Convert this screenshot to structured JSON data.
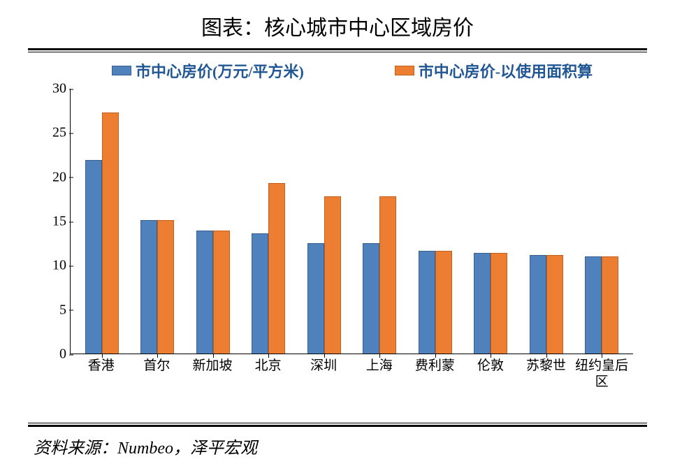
{
  "title": "图表：核心城市中心区域房价",
  "source": "资料来源：Numbeo，泽平宏观",
  "chart": {
    "type": "bar",
    "background_color": "#ffffff",
    "series": [
      {
        "name": "市中心房价(万元/平方米)",
        "color": "#4f81bd",
        "border_color": "#3a6090"
      },
      {
        "name": "市中心房价-以使用面积算",
        "color": "#ed7d31",
        "border_color": "#c05f1e"
      }
    ],
    "categories": [
      "香港",
      "首尔",
      "新加坡",
      "北京",
      "深圳",
      "上海",
      "费利蒙",
      "伦敦",
      "苏黎世",
      "纽约皇后区"
    ],
    "data": [
      {
        "s1": 21.9,
        "s2": 27.3
      },
      {
        "s1": 15.1,
        "s2": 15.1
      },
      {
        "s1": 13.9,
        "s2": 13.9
      },
      {
        "s1": 13.6,
        "s2": 19.3
      },
      {
        "s1": 12.5,
        "s2": 17.8
      },
      {
        "s1": 12.5,
        "s2": 17.8
      },
      {
        "s1": 11.6,
        "s2": 11.6
      },
      {
        "s1": 11.4,
        "s2": 11.4
      },
      {
        "s1": 11.2,
        "s2": 11.2
      },
      {
        "s1": 11.0,
        "s2": 11.0
      }
    ],
    "ylim": [
      0,
      30
    ],
    "ytick_step": 5,
    "axis_color": "#000000",
    "tick_fontsize": 20,
    "label_fontsize": 19,
    "legend_fontsize": 22,
    "legend_color": "#205694",
    "title_fontsize": 30
  }
}
